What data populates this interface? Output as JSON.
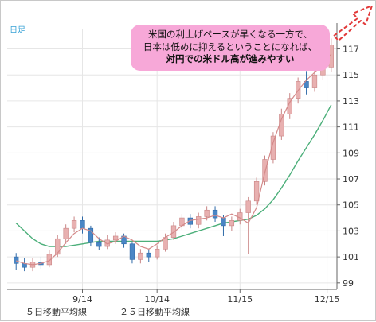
{
  "period_label": "日足",
  "annotation": {
    "line1": "米国の利上げペースが早くなる一方で、",
    "line2": "日本は低めに抑えるということになれば、",
    "line3": "対円での米ドル高が進みやすい"
  },
  "legend": [
    {
      "label": "５日移動平均線",
      "color": "#d48a8a"
    },
    {
      "label": "２５日移動平均線",
      "color": "#4caf7a"
    }
  ],
  "colors": {
    "up_candle": "#e8b0b0",
    "down_candle": "#4a86c5",
    "axis": "#666666",
    "grid": "#e6e6e6",
    "arrow": "#e23a3a",
    "bubble": "#f7a8d8"
  },
  "chart_data": {
    "type": "candlestick",
    "x_ticks": [
      "9/14",
      "10/14",
      "11/15",
      "12/15"
    ],
    "y_ticks": [
      99,
      101,
      103,
      105,
      107,
      109,
      111,
      113,
      115,
      117
    ],
    "ylim": [
      98.5,
      118.5
    ],
    "grid": true,
    "legend_position": "bottom-left",
    "series": [
      {
        "name": "５日移動平均線",
        "values": [
          100.7,
          100.5,
          100.4,
          100.5,
          100.7,
          101.3,
          102.1,
          102.8,
          103.2,
          103.0,
          102.4,
          102.0,
          102.2,
          102.6,
          102.3,
          101.8,
          101.6,
          102.0,
          102.5,
          102.9,
          103.4,
          103.8,
          103.9,
          104.0,
          104.2,
          104.0,
          104.3,
          104.0,
          103.6,
          104.8,
          107.5,
          109.8,
          111.6,
          112.9,
          113.8,
          114.6,
          115.2,
          115.8,
          116.6
        ]
      },
      {
        "name": "２５日移動平均線",
        "values": [
          103.6,
          103.0,
          102.4,
          102.0,
          101.8,
          101.8,
          101.8,
          101.9,
          102.0,
          102.1,
          102.2,
          102.2,
          102.2,
          102.2,
          102.2,
          102.2,
          102.2,
          102.2,
          102.3,
          102.4,
          102.6,
          102.8,
          103.0,
          103.2,
          103.4,
          103.6,
          103.7,
          103.8,
          103.9,
          104.2,
          104.7,
          105.4,
          106.3,
          107.3,
          108.4,
          109.4,
          110.4,
          111.5,
          112.7
        ]
      }
    ],
    "candles": [
      {
        "o": 101.0,
        "c": 100.5,
        "h": 101.3,
        "l": 100.0
      },
      {
        "o": 100.5,
        "c": 100.2,
        "h": 100.9,
        "l": 99.9
      },
      {
        "o": 100.2,
        "c": 100.6,
        "h": 100.9,
        "l": 99.9
      },
      {
        "o": 100.6,
        "c": 100.4,
        "h": 101.0,
        "l": 100.1
      },
      {
        "o": 100.4,
        "c": 101.2,
        "h": 101.5,
        "l": 100.2
      },
      {
        "o": 101.2,
        "c": 102.4,
        "h": 102.7,
        "l": 101.0
      },
      {
        "o": 102.4,
        "c": 103.2,
        "h": 103.5,
        "l": 102.0
      },
      {
        "o": 103.2,
        "c": 103.8,
        "h": 104.1,
        "l": 102.9
      },
      {
        "o": 103.8,
        "c": 103.2,
        "h": 104.1,
        "l": 102.8
      },
      {
        "o": 103.2,
        "c": 102.1,
        "h": 103.4,
        "l": 101.8
      },
      {
        "o": 102.1,
        "c": 101.8,
        "h": 102.5,
        "l": 101.5
      },
      {
        "o": 101.8,
        "c": 102.3,
        "h": 102.7,
        "l": 101.6
      },
      {
        "o": 102.3,
        "c": 102.6,
        "h": 102.9,
        "l": 102.0
      },
      {
        "o": 102.6,
        "c": 102.0,
        "h": 102.8,
        "l": 101.7
      },
      {
        "o": 102.0,
        "c": 100.8,
        "h": 102.1,
        "l": 100.5
      },
      {
        "o": 100.8,
        "c": 101.3,
        "h": 101.6,
        "l": 100.5
      },
      {
        "o": 101.3,
        "c": 101.0,
        "h": 101.6,
        "l": 100.6
      },
      {
        "o": 101.0,
        "c": 101.6,
        "h": 101.9,
        "l": 100.8
      },
      {
        "o": 101.6,
        "c": 102.5,
        "h": 102.8,
        "l": 101.4
      },
      {
        "o": 102.5,
        "c": 103.4,
        "h": 103.7,
        "l": 102.3
      },
      {
        "o": 103.4,
        "c": 104.0,
        "h": 104.3,
        "l": 103.1
      },
      {
        "o": 104.0,
        "c": 103.5,
        "h": 104.3,
        "l": 103.2
      },
      {
        "o": 103.5,
        "c": 104.1,
        "h": 104.4,
        "l": 103.2
      },
      {
        "o": 104.1,
        "c": 104.6,
        "h": 104.9,
        "l": 103.8
      },
      {
        "o": 104.6,
        "c": 104.0,
        "h": 104.9,
        "l": 103.7
      },
      {
        "o": 104.0,
        "c": 103.4,
        "h": 104.2,
        "l": 102.6
      },
      {
        "o": 103.4,
        "c": 103.8,
        "h": 104.1,
        "l": 103.0
      },
      {
        "o": 103.8,
        "c": 104.4,
        "h": 104.7,
        "l": 103.5
      },
      {
        "o": 104.4,
        "c": 105.3,
        "h": 105.6,
        "l": 101.2
      },
      {
        "o": 105.3,
        "c": 106.8,
        "h": 107.1,
        "l": 105.0
      },
      {
        "o": 106.8,
        "c": 108.5,
        "h": 108.8,
        "l": 106.5
      },
      {
        "o": 108.5,
        "c": 110.3,
        "h": 110.6,
        "l": 108.2
      },
      {
        "o": 110.3,
        "c": 112.0,
        "h": 112.4,
        "l": 110.0
      },
      {
        "o": 112.0,
        "c": 113.2,
        "h": 113.6,
        "l": 111.6
      },
      {
        "o": 113.2,
        "c": 114.5,
        "h": 114.8,
        "l": 112.8
      },
      {
        "o": 114.5,
        "c": 114.0,
        "h": 115.3,
        "l": 113.5
      },
      {
        "o": 114.0,
        "c": 115.0,
        "h": 115.4,
        "l": 113.7
      },
      {
        "o": 115.0,
        "c": 115.6,
        "h": 116.0,
        "l": 114.6
      },
      {
        "o": 115.6,
        "c": 117.3,
        "h": 117.8,
        "l": 115.2
      }
    ]
  }
}
